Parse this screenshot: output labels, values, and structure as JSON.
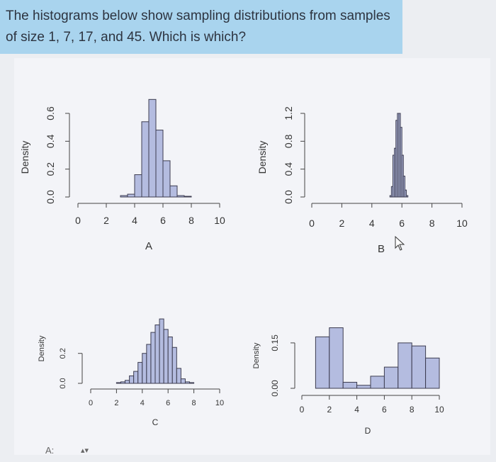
{
  "question": {
    "text": "The histograms below show sampling distributions from samples of size 1, 7, 17, and 45. Which is which?"
  },
  "answer": {
    "label": "A:",
    "select_arrow": "▴▾"
  },
  "colors": {
    "banner": "#a9d4ee",
    "bar_fill": "#b4bce0",
    "bar_stroke": "#3c3c50"
  },
  "chart_data": [
    {
      "type": "bar",
      "title": "A",
      "ylabel": "Density",
      "xlim": [
        0,
        10
      ],
      "ylim": [
        0,
        0.6
      ],
      "x_ticks": [
        "0",
        "2",
        "4",
        "6",
        "8",
        "10"
      ],
      "y_ticks": [
        "0.0",
        "0.2",
        "0.4",
        "0.6"
      ],
      "bin_width": 0.5,
      "bin_starts": [
        3,
        3.5,
        4,
        4.5,
        5,
        5.5,
        6,
        6.5,
        7,
        7.5
      ],
      "values": [
        0.01,
        0.02,
        0.16,
        0.54,
        0.7,
        0.48,
        0.26,
        0.08,
        0.01,
        0.005
      ]
    },
    {
      "type": "bar",
      "title": "B",
      "ylabel": "Density",
      "xlim": [
        0,
        10
      ],
      "ylim": [
        0,
        1.2
      ],
      "x_ticks": [
        "0",
        "2",
        "4",
        "6",
        "8",
        "10"
      ],
      "y_ticks": [
        "0.0",
        "0.4",
        "0.8",
        "1.2"
      ],
      "bin_width": 0.1,
      "bin_starts": [
        5.2,
        5.3,
        5.4,
        5.5,
        5.6,
        5.7,
        5.8,
        5.9,
        6.0,
        6.1,
        6.2,
        6.3
      ],
      "values": [
        0.02,
        0.15,
        0.6,
        0.7,
        1.1,
        1.2,
        1.2,
        1.0,
        0.6,
        0.3,
        0.1,
        0.02
      ]
    },
    {
      "type": "bar",
      "title": "C",
      "ylabel": "Density",
      "xlim": [
        0,
        10
      ],
      "ylim": [
        0,
        0.35
      ],
      "x_ticks": [
        "0",
        "2",
        "4",
        "6",
        "8",
        "10"
      ],
      "y_ticks": [
        "0.0",
        "0.2"
      ],
      "bin_width": 0.333,
      "bin_starts": [
        2,
        2.333,
        2.667,
        3,
        3.333,
        3.667,
        4,
        4.333,
        4.667,
        5,
        5.333,
        5.667,
        6,
        6.333,
        6.667,
        7,
        7.333,
        7.667
      ],
      "values": [
        0.005,
        0.01,
        0.02,
        0.05,
        0.08,
        0.14,
        0.2,
        0.26,
        0.34,
        0.39,
        0.43,
        0.36,
        0.31,
        0.24,
        0.1,
        0.03,
        0.01,
        0.005
      ]
    },
    {
      "type": "bar",
      "title": "D",
      "ylabel": "Density",
      "xlim": [
        0,
        10
      ],
      "ylim": [
        0,
        0.22
      ],
      "x_ticks": [
        "0",
        "2",
        "4",
        "6",
        "8",
        "10"
      ],
      "y_ticks": [
        "0.00",
        "0.15"
      ],
      "bin_width": 1,
      "bin_starts": [
        1,
        2,
        3,
        4,
        5,
        6,
        7,
        8,
        9
      ],
      "values": [
        0.17,
        0.2,
        0.02,
        0.01,
        0.04,
        0.07,
        0.15,
        0.14,
        0.1
      ]
    }
  ]
}
